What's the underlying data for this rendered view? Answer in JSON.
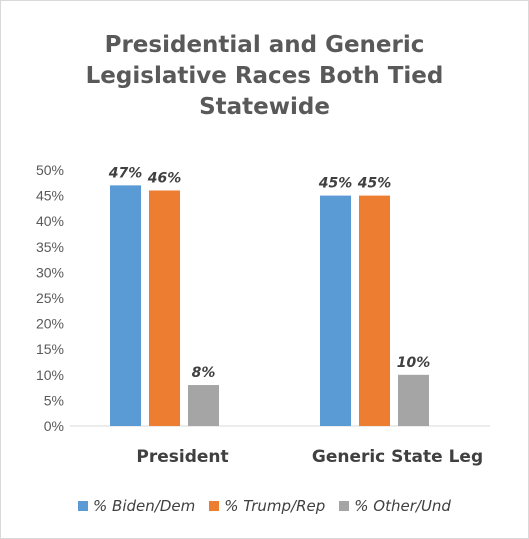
{
  "chart_data": {
    "type": "bar",
    "title": "Presidential and Generic\nLegislative Races Both Tied\nStatewide",
    "categories": [
      "President",
      "Generic State Leg"
    ],
    "series": [
      {
        "name": "% Biden/Dem",
        "values": [
          47,
          45
        ],
        "labels": [
          "47%",
          "45%"
        ],
        "color": "#5b9bd5"
      },
      {
        "name": "% Trump/Rep",
        "values": [
          46,
          45
        ],
        "labels": [
          "46%",
          "45%"
        ],
        "color": "#ed7d31"
      },
      {
        "name": "% Other/Und",
        "values": [
          8,
          10
        ],
        "labels": [
          "8%",
          "10%"
        ],
        "color": "#a5a5a5"
      }
    ],
    "ylim": [
      0,
      50
    ],
    "yticks": [
      0,
      5,
      10,
      15,
      20,
      25,
      30,
      35,
      40,
      45,
      50
    ],
    "ytick_labels": [
      "0%",
      "5%",
      "10%",
      "15%",
      "20%",
      "25%",
      "30%",
      "35%",
      "40%",
      "45%",
      "50%"
    ],
    "xlabel": "",
    "ylabel": "",
    "grid": false,
    "legend_position": "bottom",
    "axis_color": "#d9d9d9"
  }
}
